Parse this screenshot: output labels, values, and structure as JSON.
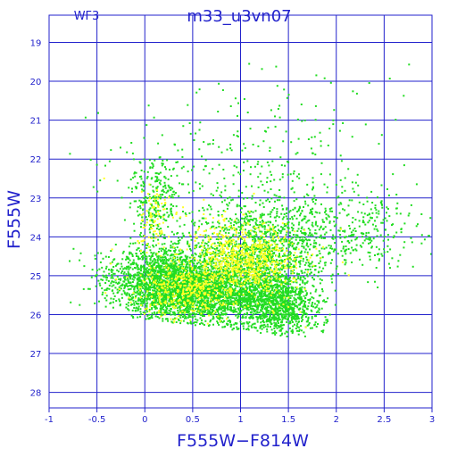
{
  "chart_data": {
    "type": "scatter",
    "corner_label": "WF3",
    "title": "m33_u3vn07",
    "xlabel": "F555W−F814W",
    "ylabel": "F555W",
    "xlim": [
      -1,
      3
    ],
    "ylim": [
      28.4,
      18.3
    ],
    "y_inverted": true,
    "grid": true,
    "x_ticks": [
      -1,
      -0.5,
      0,
      0.5,
      1,
      1.5,
      2,
      2.5,
      3
    ],
    "x_tick_labels": [
      "-1",
      "-0.5",
      "0",
      "0.5",
      "1",
      "1.5",
      "2",
      "2.5",
      "3"
    ],
    "y_ticks": [
      19,
      20,
      21,
      22,
      23,
      24,
      25,
      26,
      27,
      28
    ],
    "y_tick_labels": [
      "19",
      "20",
      "21",
      "22",
      "23",
      "24",
      "25",
      "26",
      "27",
      "28"
    ],
    "series": [
      {
        "color": "#22dd22",
        "clusters": [
          {
            "cx": 0.15,
            "cy": 25.1,
            "sx": 0.28,
            "sy": 0.45,
            "n": 1500
          },
          {
            "cx": 0.55,
            "cy": 25.4,
            "sx": 0.3,
            "sy": 0.45,
            "n": 1600
          },
          {
            "cx": 1.1,
            "cy": 25.2,
            "sx": 0.3,
            "sy": 0.6,
            "n": 1500
          },
          {
            "cx": 1.4,
            "cy": 25.8,
            "sx": 0.2,
            "sy": 0.35,
            "n": 700
          },
          {
            "cx": 1.3,
            "cy": 24.0,
            "sx": 0.45,
            "sy": 0.6,
            "n": 800
          },
          {
            "cx": 2.2,
            "cy": 23.8,
            "sx": 0.45,
            "sy": 0.5,
            "n": 280
          },
          {
            "cx": 0.1,
            "cy": 23.0,
            "sx": 0.12,
            "sy": 0.5,
            "n": 250
          },
          {
            "cx": 0.7,
            "cy": 22.3,
            "sx": 0.6,
            "sy": 1.0,
            "n": 180
          },
          {
            "cx": 1.6,
            "cy": 21.5,
            "sx": 0.6,
            "sy": 1.0,
            "n": 100
          }
        ]
      },
      {
        "color": "#ffff22",
        "clusters": [
          {
            "cx": 1.05,
            "cy": 24.6,
            "sx": 0.28,
            "sy": 0.45,
            "n": 650
          },
          {
            "cx": 0.45,
            "cy": 25.3,
            "sx": 0.25,
            "sy": 0.35,
            "n": 350
          },
          {
            "cx": 0.1,
            "cy": 23.5,
            "sx": 0.08,
            "sy": 0.4,
            "n": 80
          },
          {
            "cx": 0.7,
            "cy": 24.7,
            "sx": 0.5,
            "sy": 0.8,
            "n": 140
          }
        ]
      }
    ]
  }
}
